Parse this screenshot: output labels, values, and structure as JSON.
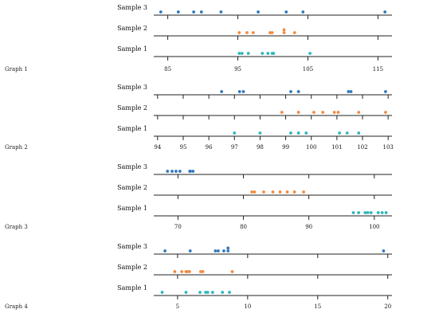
{
  "colors": {
    "Sample 1": "#2bb6bb",
    "Sample 2": "#f28a3c",
    "Sample 3": "#2e78bd",
    "axis": "#222222"
  },
  "chart_data": [
    {
      "type": "scatter",
      "title": "Graph 1",
      "xlim": [
        83,
        117
      ],
      "ticks": [
        85,
        95,
        105,
        115
      ],
      "tick_labels": [
        "85",
        "95",
        "105",
        "115"
      ],
      "series": [
        {
          "name": "Sample 3",
          "x": [
            84,
            86.5,
            88.7,
            89.8,
            92.6,
            97.9,
            101.9,
            104.3,
            116
          ]
        },
        {
          "name": "Sample 2",
          "x": [
            95.2,
            96.3,
            97.2,
            99.6,
            99.9,
            101.6,
            101.6,
            103.1
          ]
        },
        {
          "name": "Sample 1",
          "x": [
            95.2,
            95.6,
            96.5,
            98.5,
            99.3,
            99.9,
            100.1,
            105.3
          ]
        }
      ]
    },
    {
      "type": "scatter",
      "title": "Graph 2",
      "xlim": [
        93.85,
        103.15
      ],
      "ticks": [
        94,
        95,
        96,
        97,
        98,
        99,
        100,
        101,
        102,
        103
      ],
      "tick_labels": [
        "94",
        "95",
        "96",
        "97",
        "98",
        "99",
        "100",
        "101",
        "102",
        "103"
      ],
      "series": [
        {
          "name": "Sample 3",
          "x": [
            96.5,
            97.2,
            97.35,
            99.2,
            99.5,
            101.45,
            101.55,
            102.9
          ]
        },
        {
          "name": "Sample 2",
          "x": [
            98.85,
            99.5,
            100.1,
            100.45,
            100.9,
            101.05,
            101.85,
            102.9
          ]
        },
        {
          "name": "Sample 1",
          "x": [
            97,
            98,
            99.2,
            99.5,
            99.8,
            101.1,
            101.4,
            101.85
          ]
        }
      ]
    },
    {
      "type": "scatter",
      "title": "Graph 3",
      "xlim": [
        66.3,
        102.7
      ],
      "ticks": [
        70,
        80,
        90,
        100
      ],
      "tick_labels": [
        "70",
        "80",
        "90",
        "100"
      ],
      "series": [
        {
          "name": "Sample 3",
          "x": [
            68.4,
            69.1,
            69.7,
            70.3,
            71.8,
            71.9,
            72.3
          ]
        },
        {
          "name": "Sample 2",
          "x": [
            81.3,
            81.7,
            83.1,
            84.5,
            85.6,
            86.7,
            87.8,
            89.2
          ]
        },
        {
          "name": "Sample 1",
          "x": [
            96.8,
            97.6,
            98.6,
            99,
            99.5,
            100.6,
            101.2,
            101.8
          ]
        }
      ]
    },
    {
      "type": "scatter",
      "title": "Graph 4",
      "xlim": [
        3.3,
        20.3
      ],
      "ticks": [
        5,
        10,
        15,
        20
      ],
      "tick_labels": [
        "5",
        "10",
        "15",
        "20"
      ],
      "series": [
        {
          "name": "Sample 3",
          "x": [
            4.1,
            5.9,
            7.7,
            7.9,
            8.3,
            8.6,
            8.6,
            19.7
          ]
        },
        {
          "name": "Sample 2",
          "x": [
            4.8,
            5.3,
            5.6,
            5.7,
            5.85,
            6.65,
            6.8,
            8.9
          ]
        },
        {
          "name": "Sample 1",
          "x": [
            3.9,
            5.6,
            6.6,
            7,
            7.15,
            7.5,
            8.2,
            8.7
          ]
        }
      ]
    }
  ]
}
